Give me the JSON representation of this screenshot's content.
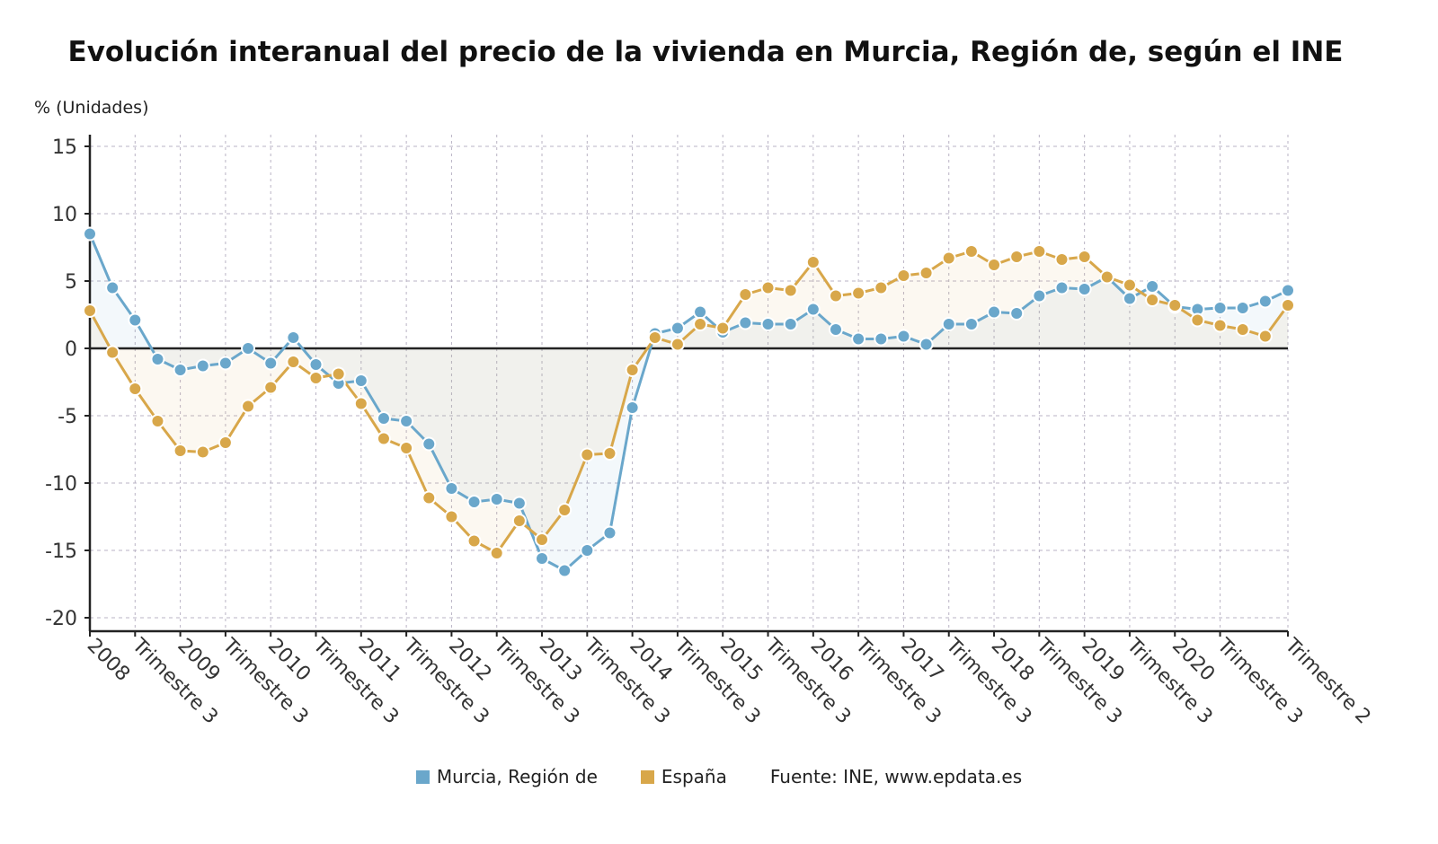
{
  "chart_data": {
    "type": "line",
    "title": "Evolución interanual del precio de la vivienda en Murcia, Región de, según el INE",
    "ylabel": "% (Unidades)",
    "ylim": [
      -20,
      15
    ],
    "yticks": [
      15,
      10,
      5,
      0,
      -5,
      -10,
      -15,
      -20
    ],
    "grid": true,
    "legend_position": "bottom",
    "x_tick_labels": [
      "2008",
      "Trimestre 3",
      "2009",
      "Trimestre 3",
      "2010",
      "Trimestre 3",
      "2011",
      "Trimestre 3",
      "2012",
      "Trimestre 3",
      "2013",
      "Trimestre 3",
      "2014",
      "Trimestre 3",
      "2015",
      "Trimestre 3",
      "2016",
      "Trimestre 3",
      "2017",
      "Trimestre 3",
      "2018",
      "Trimestre 3",
      "2019",
      "Trimestre 3",
      "2020",
      "Trimestre 3",
      "Trimestre 2"
    ],
    "x_tick_indices": [
      0,
      2,
      4,
      6,
      8,
      10,
      12,
      14,
      16,
      18,
      20,
      22,
      24,
      26,
      28,
      30,
      32,
      34,
      36,
      38,
      40,
      42,
      44,
      46,
      48,
      50,
      53
    ],
    "series": [
      {
        "name": "Murcia, Región de",
        "color": "#6aa7cb",
        "values": [
          8.5,
          4.5,
          2.1,
          -0.8,
          -1.6,
          -1.3,
          -1.1,
          0.0,
          -1.1,
          0.8,
          -1.2,
          -2.6,
          -2.4,
          -5.2,
          -5.4,
          -7.1,
          -10.4,
          -11.4,
          -11.2,
          -11.5,
          -15.6,
          -16.5,
          -15.0,
          -13.7,
          -4.4,
          1.1,
          1.5,
          2.7,
          1.2,
          1.9,
          1.8,
          1.8,
          2.9,
          1.4,
          0.7,
          0.7,
          0.9,
          0.3,
          1.8,
          1.8,
          2.7,
          2.6,
          3.9,
          4.5,
          4.4,
          5.3,
          3.7,
          4.6,
          3.1,
          2.9,
          3.0,
          3.0,
          3.5,
          4.3
        ]
      },
      {
        "name": "España",
        "color": "#d8a74a",
        "values": [
          2.8,
          -0.3,
          -3.0,
          -5.4,
          -7.6,
          -7.7,
          -7.0,
          -4.3,
          -2.9,
          -1.0,
          -2.2,
          -1.9,
          -4.1,
          -6.7,
          -7.4,
          -11.1,
          -12.5,
          -14.3,
          -15.2,
          -12.8,
          -14.2,
          -12.0,
          -7.9,
          -7.8,
          -1.6,
          0.8,
          0.3,
          1.8,
          1.5,
          4.0,
          4.5,
          4.3,
          6.4,
          3.9,
          4.1,
          4.5,
          5.4,
          5.6,
          6.7,
          7.2,
          6.2,
          6.8,
          7.2,
          6.6,
          6.8,
          5.3,
          4.7,
          3.6,
          3.2,
          2.1,
          1.7,
          1.4,
          0.9,
          3.2
        ]
      }
    ]
  },
  "legend": {
    "source": "Fuente: INE, www.epdata.es"
  }
}
